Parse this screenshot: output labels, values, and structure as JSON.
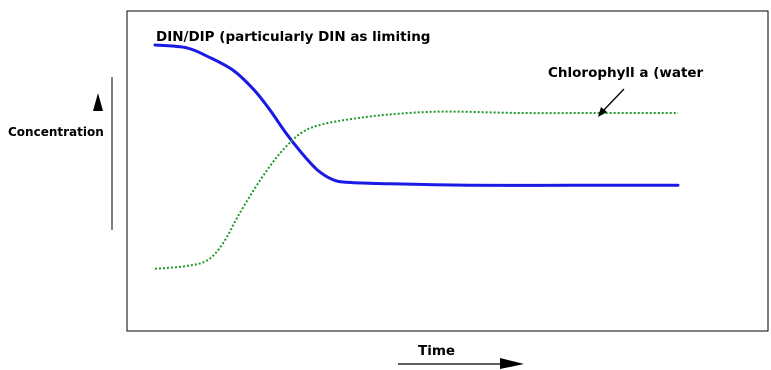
{
  "labels": {
    "din_curve": "DIN/DIP (particularly DIN as limiting",
    "chl_curve": "Chlorophyll a (water",
    "y_axis": "Concentration",
    "x_axis": "Time"
  },
  "colors": {
    "din_line": "#1a1ae6",
    "chl_line": "#1f9a2a",
    "frame": "#000000"
  },
  "chart_data": {
    "type": "line",
    "title": "",
    "xlabel": "Time",
    "ylabel": "Concentration",
    "x_axis_ticks": false,
    "y_axis_ticks": false,
    "grid": false,
    "series": [
      {
        "name": "DIN/DIP (particularly DIN as limiting",
        "style": "solid",
        "points": [
          [
            0.0,
            0.9
          ],
          [
            0.06,
            0.89
          ],
          [
            0.1,
            0.86
          ],
          [
            0.15,
            0.81
          ],
          [
            0.19,
            0.74
          ],
          [
            0.22,
            0.67
          ],
          [
            0.25,
            0.59
          ],
          [
            0.28,
            0.52
          ],
          [
            0.31,
            0.46
          ],
          [
            0.34,
            0.425
          ],
          [
            0.37,
            0.415
          ],
          [
            0.45,
            0.41
          ],
          [
            0.6,
            0.405
          ],
          [
            0.8,
            0.405
          ],
          [
            1.0,
            0.405
          ]
        ]
      },
      {
        "name": "Chlorophyll a (water",
        "style": "dotted",
        "points": [
          [
            0.0,
            0.11
          ],
          [
            0.06,
            0.12
          ],
          [
            0.1,
            0.14
          ],
          [
            0.13,
            0.2
          ],
          [
            0.16,
            0.3
          ],
          [
            0.2,
            0.42
          ],
          [
            0.24,
            0.52
          ],
          [
            0.28,
            0.59
          ],
          [
            0.32,
            0.62
          ],
          [
            0.38,
            0.64
          ],
          [
            0.45,
            0.655
          ],
          [
            0.55,
            0.665
          ],
          [
            0.7,
            0.66
          ],
          [
            0.85,
            0.66
          ],
          [
            1.0,
            0.66
          ]
        ]
      }
    ]
  }
}
